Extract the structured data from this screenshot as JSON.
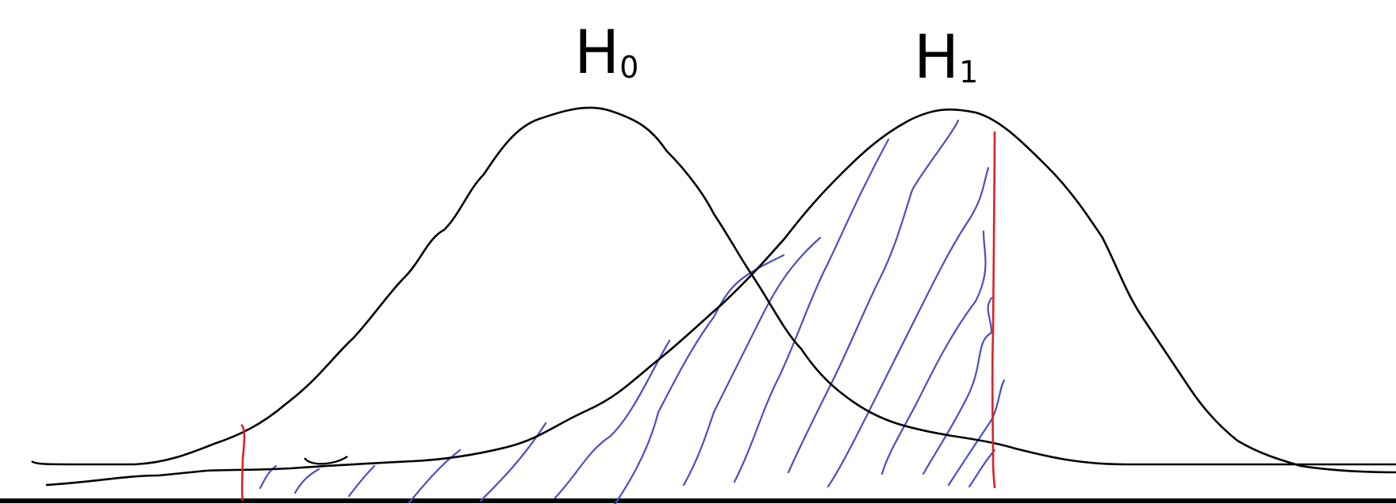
{
  "labels": {
    "h0": {
      "letter": "H",
      "subscript": "0"
    },
    "h1": {
      "letter": "H",
      "subscript": "1"
    }
  },
  "colors": {
    "curve": "#000000",
    "critical_line": "#e02020",
    "hatching": "#4a4fc4",
    "baseline": "#000000"
  }
}
